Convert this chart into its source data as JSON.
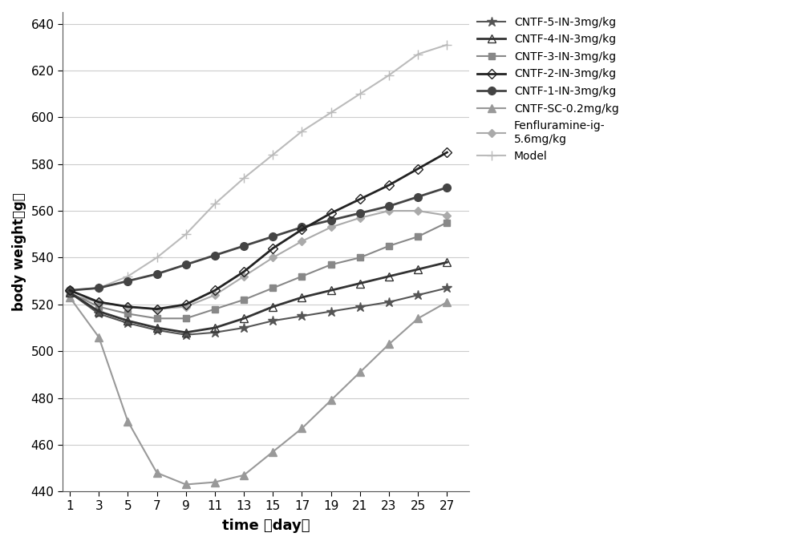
{
  "x": [
    1,
    3,
    5,
    7,
    9,
    11,
    13,
    15,
    17,
    19,
    21,
    23,
    25,
    27
  ],
  "series": [
    {
      "name": "CNTF-5-IN-3mg/kg",
      "y": [
        525,
        516,
        512,
        509,
        507,
        508,
        510,
        513,
        515,
        517,
        519,
        521,
        524,
        527
      ],
      "color": "#555555",
      "marker": "*",
      "linewidth": 1.5,
      "markersize": 9,
      "linestyle": "-",
      "markerfacecolor": "#555555",
      "zorder": 5
    },
    {
      "name": "CNTF-4-IN-3mg/kg",
      "y": [
        525,
        517,
        513,
        510,
        508,
        510,
        514,
        519,
        523,
        526,
        529,
        532,
        535,
        538
      ],
      "color": "#333333",
      "marker": "^",
      "linewidth": 2.0,
      "markersize": 7,
      "linestyle": "-",
      "markerfacecolor": "none",
      "zorder": 6
    },
    {
      "name": "CNTF-3-IN-3mg/kg",
      "y": [
        525,
        519,
        516,
        514,
        514,
        518,
        522,
        527,
        532,
        537,
        540,
        545,
        549,
        555
      ],
      "color": "#888888",
      "marker": "s",
      "linewidth": 1.5,
      "markersize": 6,
      "linestyle": "-",
      "markerfacecolor": "#888888",
      "zorder": 4
    },
    {
      "name": "CNTF-2-IN-3mg/kg",
      "y": [
        526,
        521,
        519,
        518,
        520,
        526,
        534,
        544,
        552,
        559,
        565,
        571,
        578,
        585
      ],
      "color": "#222222",
      "marker": "D",
      "linewidth": 2.0,
      "markersize": 6,
      "linestyle": "-",
      "markerfacecolor": "none",
      "zorder": 8
    },
    {
      "name": "CNTF-1-IN-3mg/kg",
      "y": [
        526,
        527,
        530,
        533,
        537,
        541,
        545,
        549,
        553,
        556,
        559,
        562,
        566,
        570
      ],
      "color": "#444444",
      "marker": "o",
      "linewidth": 2.0,
      "markersize": 7,
      "linestyle": "-",
      "markerfacecolor": "#444444",
      "zorder": 7
    },
    {
      "name": "CNTF-SC-0.2mg/kg",
      "y": [
        523,
        506,
        470,
        448,
        443,
        444,
        447,
        457,
        467,
        479,
        491,
        503,
        514,
        521
      ],
      "color": "#999999",
      "marker": "^",
      "linewidth": 1.5,
      "markersize": 7,
      "linestyle": "-",
      "markerfacecolor": "#999999",
      "zorder": 3
    },
    {
      "name": "Fenfluramine-ig-\n5.6mg/kg",
      "y": [
        524,
        521,
        519,
        518,
        519,
        524,
        532,
        540,
        547,
        553,
        557,
        560,
        560,
        558
      ],
      "color": "#aaaaaa",
      "marker": "D",
      "linewidth": 1.5,
      "markersize": 5,
      "linestyle": "-",
      "markerfacecolor": "#aaaaaa",
      "zorder": 2
    },
    {
      "name": "Model",
      "y": [
        526,
        527,
        532,
        540,
        550,
        563,
        574,
        584,
        594,
        602,
        610,
        618,
        627,
        631
      ],
      "color": "#bbbbbb",
      "marker": "+",
      "linewidth": 1.5,
      "markersize": 8,
      "linestyle": "-",
      "markerfacecolor": "#bbbbbb",
      "zorder": 1
    }
  ],
  "legend_order": [
    "CNTF-5-IN-3mg/kg",
    "CNTF-4-IN-3mg/kg",
    "CNTF-3-IN-3mg/kg",
    "CNTF-2-IN-3mg/kg",
    "CNTF-1-IN-3mg/kg",
    "CNTF-SC-0.2mg/kg",
    "Fenfluramine-ig-\n5.6mg/kg",
    "Model"
  ],
  "xlabel": "time （day）",
  "ylabel": "body weight（g）",
  "xlim": [
    0.5,
    28.5
  ],
  "ylim": [
    440,
    645
  ],
  "xticks": [
    1,
    3,
    5,
    7,
    9,
    11,
    13,
    15,
    17,
    19,
    21,
    23,
    25,
    27
  ],
  "yticks": [
    440,
    460,
    480,
    500,
    520,
    540,
    560,
    580,
    600,
    620,
    640
  ],
  "background_color": "#ffffff",
  "grid_color": "#cccccc"
}
